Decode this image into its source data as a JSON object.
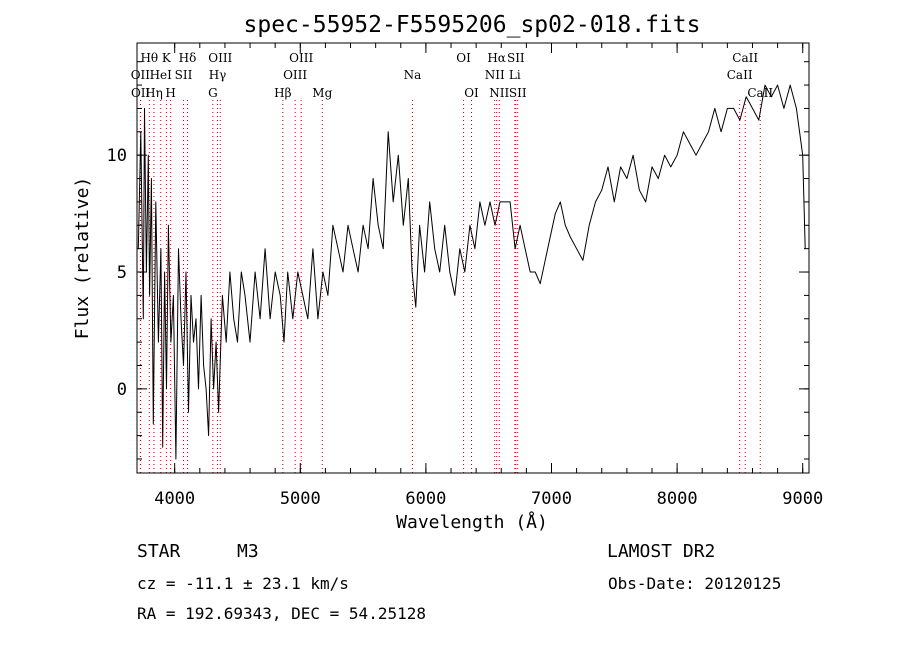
{
  "chart_data": {
    "type": "line",
    "title": "spec-55952-F5595206_sp02-018.fits",
    "xlabel": "Wavelength (Å)",
    "ylabel": "Flux (relative)",
    "xlim": [
      3700,
      9050
    ],
    "ylim": [
      -3.6,
      14.8
    ],
    "x_ticks": [
      4000,
      5000,
      6000,
      7000,
      8000,
      9000
    ],
    "y_ticks": [
      0,
      5,
      10
    ],
    "grid": false,
    "line_color": "#000000",
    "marker_color": "#cc0000",
    "series": [
      {
        "x": [
          3710,
          3730,
          3750,
          3760,
          3775,
          3790,
          3800,
          3815,
          3830,
          3850,
          3870,
          3890,
          3905,
          3920,
          3935,
          3950,
          3970,
          3990,
          4010,
          4030,
          4050,
          4070,
          4090,
          4110,
          4130,
          4150,
          4170,
          4190,
          4210,
          4230,
          4250,
          4270,
          4290,
          4310,
          4330,
          4350,
          4380,
          4410,
          4440,
          4470,
          4500,
          4530,
          4560,
          4600,
          4640,
          4680,
          4720,
          4760,
          4800,
          4840,
          4870,
          4900,
          4940,
          4980,
          5020,
          5060,
          5100,
          5140,
          5180,
          5220,
          5260,
          5300,
          5340,
          5380,
          5420,
          5460,
          5500,
          5540,
          5580,
          5620,
          5660,
          5700,
          5740,
          5780,
          5820,
          5860,
          5890,
          5920,
          5950,
          5990,
          6030,
          6070,
          6110,
          6150,
          6190,
          6230,
          6270,
          6310,
          6350,
          6390,
          6430,
          6470,
          6510,
          6550,
          6590,
          6630,
          6670,
          6710,
          6750,
          6790,
          6830,
          6870,
          6910,
          6950,
          6990,
          7030,
          7070,
          7110,
          7150,
          7200,
          7250,
          7300,
          7350,
          7400,
          7450,
          7500,
          7550,
          7600,
          7650,
          7700,
          7750,
          7800,
          7850,
          7900,
          7950,
          8000,
          8050,
          8100,
          8150,
          8200,
          8250,
          8300,
          8350,
          8400,
          8450,
          8500,
          8550,
          8600,
          8650,
          8700,
          8750,
          8800,
          8850,
          8900,
          8950,
          9000,
          9020
        ],
        "y": [
          6,
          11,
          3,
          12,
          5,
          10,
          4,
          9,
          -1.5,
          8,
          2,
          6,
          -2.5,
          5,
          0,
          7,
          2,
          4,
          -3,
          6,
          3,
          1,
          5,
          -1,
          4,
          2,
          3,
          0,
          4,
          1,
          0,
          -2,
          3,
          0,
          2,
          -1,
          4,
          2,
          5,
          3,
          2,
          5,
          4,
          2,
          5,
          3,
          6,
          3,
          5,
          4,
          2,
          5,
          3,
          5,
          4,
          3,
          6,
          3,
          5,
          4,
          7,
          6,
          5,
          7,
          6,
          5,
          7,
          6,
          9,
          7,
          6,
          11,
          8,
          10,
          7,
          9,
          5,
          3.5,
          7,
          5,
          8,
          6,
          5,
          7,
          5,
          4,
          6,
          5,
          7,
          6,
          8,
          7,
          8,
          7,
          8,
          8,
          8,
          6,
          7,
          6,
          5,
          5,
          4.5,
          5.5,
          6.5,
          7.5,
          8,
          7,
          6.5,
          6,
          5.5,
          7,
          8,
          8.5,
          9.5,
          8,
          9.5,
          9,
          10,
          8.5,
          8,
          9.5,
          9,
          10,
          9.5,
          10,
          11,
          10.5,
          10,
          10.5,
          11,
          12,
          11,
          12,
          12,
          11.5,
          12.5,
          12,
          11.5,
          13,
          12.5,
          13,
          12,
          13,
          12,
          10,
          6
        ]
      }
    ],
    "lines": [
      {
        "label": "Hθ",
        "x": 3798,
        "row": 0
      },
      {
        "label": "OII",
        "x": 3727,
        "row": 1
      },
      {
        "label": "OII",
        "x": 3729,
        "row": 2
      },
      {
        "label": "K",
        "x": 3934,
        "row": 0
      },
      {
        "label": "HeI",
        "x": 3889,
        "row": 1
      },
      {
        "label": "Hη",
        "x": 3835,
        "row": 2
      },
      {
        "label": "SII",
        "x": 4070,
        "row": 1
      },
      {
        "label": "H",
        "x": 3968,
        "row": 2
      },
      {
        "label": "Hδ",
        "x": 4102,
        "row": 0
      },
      {
        "label": "OIII",
        "x": 4363,
        "row": 0
      },
      {
        "label": "Hγ",
        "x": 4341,
        "row": 1
      },
      {
        "label": "G",
        "x": 4304,
        "row": 2
      },
      {
        "label": "OIII",
        "x": 5007,
        "row": 0
      },
      {
        "label": "OIII",
        "x": 4959,
        "row": 1
      },
      {
        "label": "Hβ",
        "x": 4861,
        "row": 2
      },
      {
        "label": "Mg",
        "x": 5175,
        "row": 2
      },
      {
        "label": "Na",
        "x": 5893,
        "row": 1
      },
      {
        "label": "OI",
        "x": 6300,
        "row": 0
      },
      {
        "label": "OI",
        "x": 6363,
        "row": 2
      },
      {
        "label": "Hα",
        "x": 6563,
        "row": 0
      },
      {
        "label": "SII",
        "x": 6716,
        "row": 0
      },
      {
        "label": "NII",
        "x": 6548,
        "row": 1
      },
      {
        "label": "Li",
        "x": 6708,
        "row": 1
      },
      {
        "label": "NII",
        "x": 6584,
        "row": 2
      },
      {
        "label": "SII",
        "x": 6731,
        "row": 2
      },
      {
        "label": "CaII",
        "x": 8542,
        "row": 0
      },
      {
        "label": "CaII",
        "x": 8498,
        "row": 1
      },
      {
        "label": "CaII",
        "x": 8662,
        "row": 2
      }
    ]
  },
  "info": {
    "object_class": "STAR",
    "subclass": "M3",
    "survey": "LAMOST DR2",
    "redshift": "cz = -11.1 ± 23.1 km/s",
    "obs_date": "Obs-Date: 20120125",
    "coords": "RA = 192.69343, DEC =  54.25128"
  }
}
